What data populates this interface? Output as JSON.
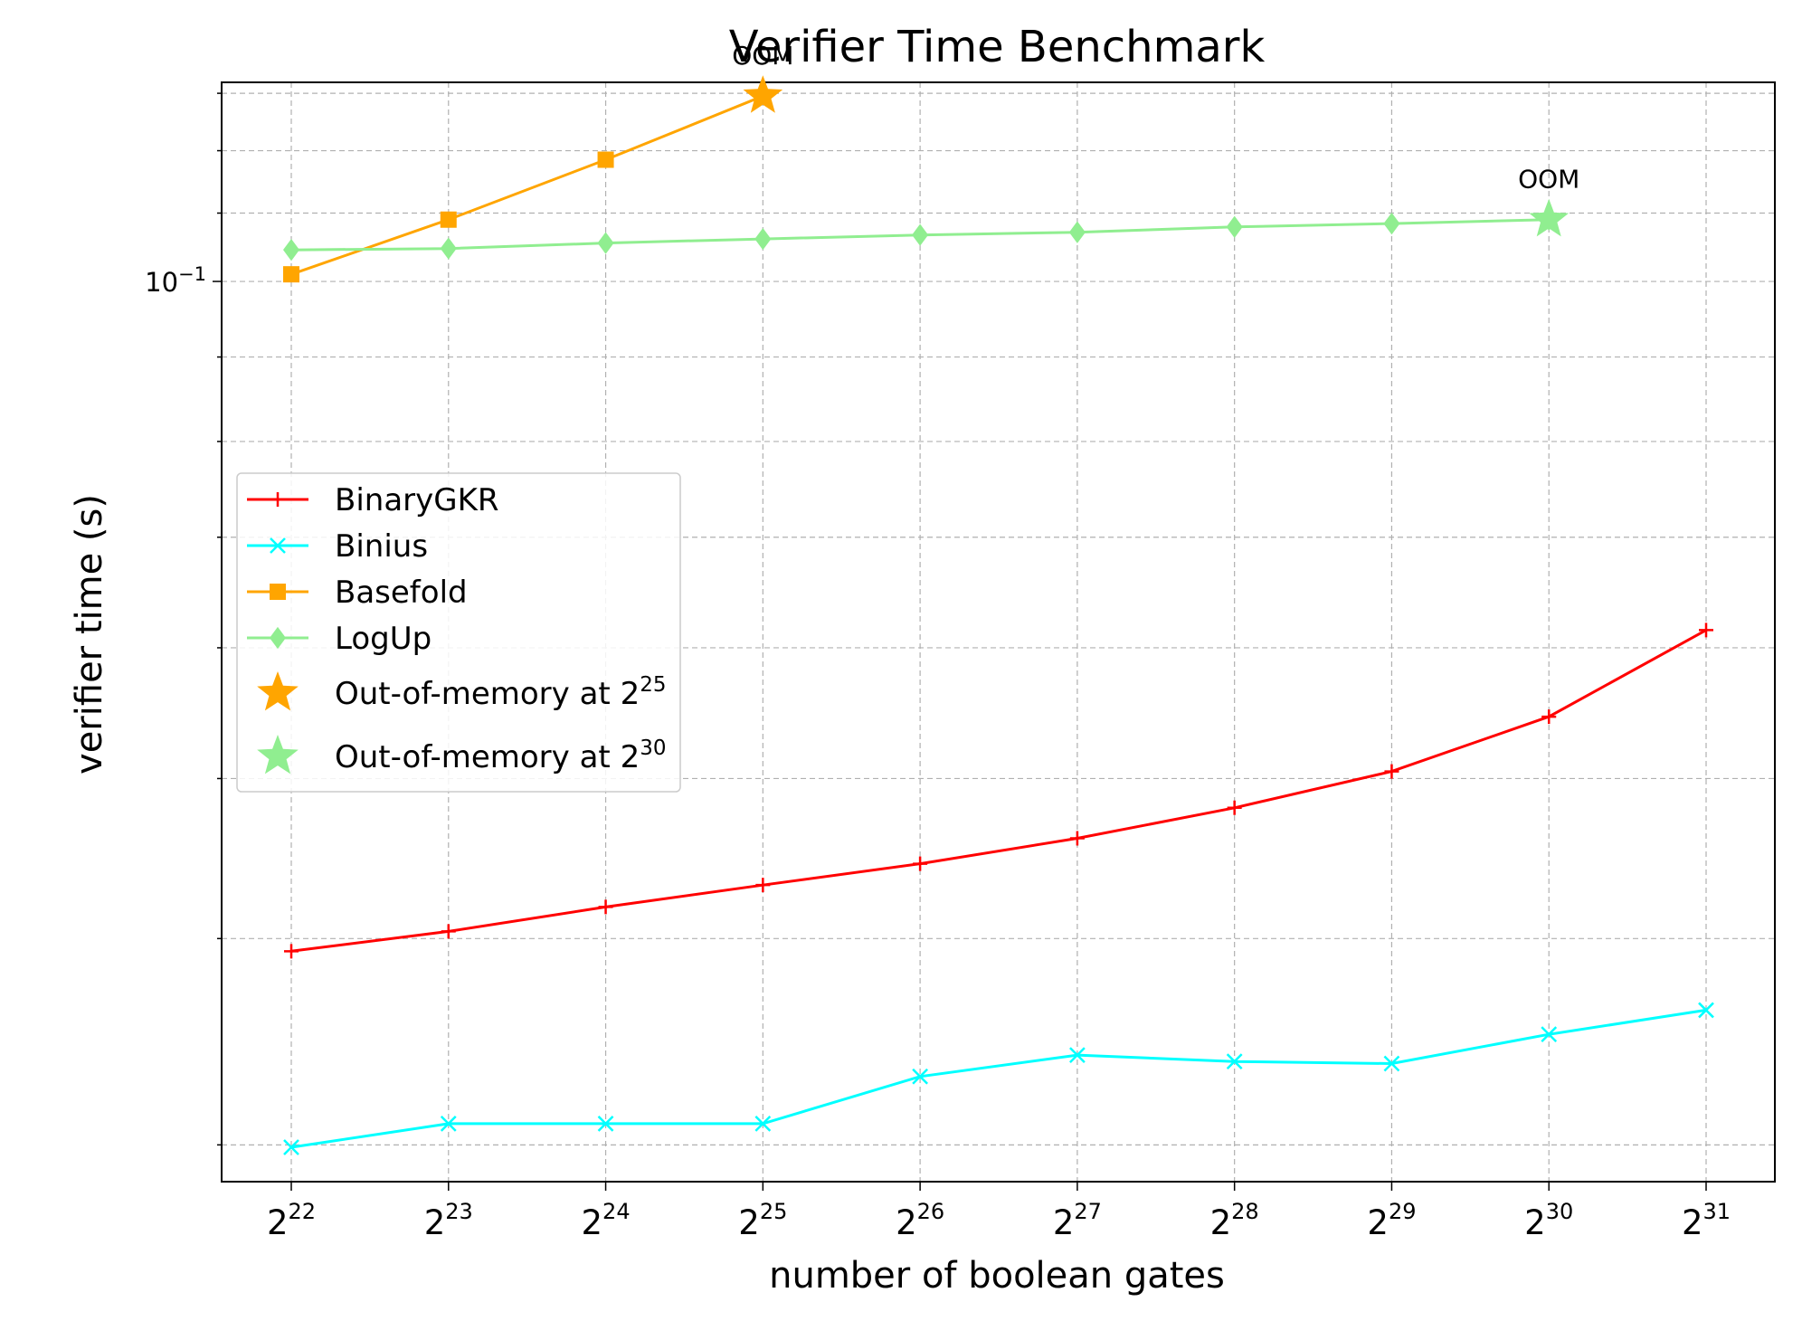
{
  "chart_data": {
    "type": "line",
    "title": "Verifier Time Benchmark",
    "xlabel": "number of boolean gates",
    "ylabel": "verifier time (s)",
    "y_scale": "log",
    "ylim": [
      0.0285,
      0.132
    ],
    "grid": true,
    "legend_position": "center-left",
    "x_tick_labels": [
      {
        "base": "2",
        "exp": "22"
      },
      {
        "base": "2",
        "exp": "23"
      },
      {
        "base": "2",
        "exp": "24"
      },
      {
        "base": "2",
        "exp": "25"
      },
      {
        "base": "2",
        "exp": "26"
      },
      {
        "base": "2",
        "exp": "27"
      },
      {
        "base": "2",
        "exp": "28"
      },
      {
        "base": "2",
        "exp": "29"
      },
      {
        "base": "2",
        "exp": "30"
      },
      {
        "base": "2",
        "exp": "31"
      }
    ],
    "y_tick_labels": [
      {
        "value": 0.1,
        "base": "10",
        "exp": "−1"
      }
    ],
    "x": [
      22,
      23,
      24,
      25,
      26,
      27,
      28,
      29,
      30,
      31
    ],
    "series": [
      {
        "name": "BinaryGKR",
        "color": "#ff0000",
        "marker": "plus",
        "values": [
          0.0393,
          0.0404,
          0.0418,
          0.0431,
          0.0444,
          0.046,
          0.048,
          0.0505,
          0.0545,
          0.0615
        ]
      },
      {
        "name": "Binius",
        "color": "#00ffff",
        "marker": "x",
        "values": [
          0.0299,
          0.0309,
          0.0309,
          0.0309,
          0.033,
          0.034,
          0.0337,
          0.0336,
          0.035,
          0.0362
        ]
      },
      {
        "name": "Basefold",
        "color": "#ffa500",
        "marker": "square",
        "values": [
          0.101,
          0.109,
          0.1185,
          null,
          null,
          null,
          null,
          null,
          null,
          null
        ]
      },
      {
        "name": "LogUp",
        "color": "#90ee90",
        "marker": "diamond",
        "values": [
          0.1045,
          0.1047,
          0.1055,
          0.1061,
          0.1067,
          0.1071,
          0.1079,
          0.1084,
          0.109,
          null
        ]
      }
    ],
    "oom_markers": [
      {
        "series": "Basefold",
        "x": 25,
        "y": 0.1295,
        "label": "OOM",
        "color": "#ffa500"
      },
      {
        "series": "LogUp",
        "x": 30,
        "y": 0.109,
        "label": "OOM",
        "color": "#90ee90"
      }
    ],
    "legend": [
      {
        "label": "BinaryGKR",
        "color": "#ff0000",
        "marker": "plus"
      },
      {
        "label": "Binius",
        "color": "#00ffff",
        "marker": "x"
      },
      {
        "label": "Basefold",
        "color": "#ffa500",
        "marker": "square"
      },
      {
        "label": "LogUp",
        "color": "#90ee90",
        "marker": "diamond"
      },
      {
        "label": "Out-of-memory at 2",
        "sup": "25",
        "color": "#ffa500",
        "marker": "star"
      },
      {
        "label": "Out-of-memory at 2",
        "sup": "30",
        "color": "#90ee90",
        "marker": "star"
      }
    ]
  }
}
